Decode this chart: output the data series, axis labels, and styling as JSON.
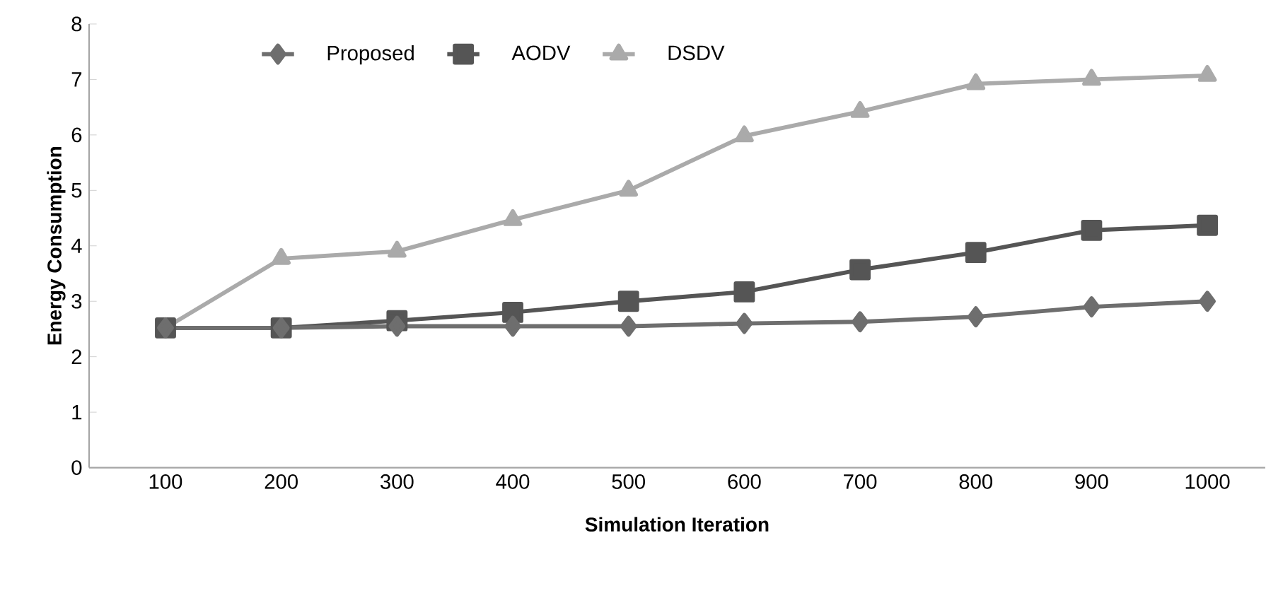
{
  "chart_data": {
    "type": "line",
    "xlabel": "Simulation Iteration",
    "ylabel": "Energy Consumption",
    "categories": [
      "100",
      "200",
      "300",
      "400",
      "500",
      "600",
      "700",
      "800",
      "900",
      "1000"
    ],
    "series": [
      {
        "name": "Proposed",
        "color": "#6e6e6e",
        "marker": "diamond",
        "values": [
          2.52,
          2.52,
          2.55,
          2.55,
          2.55,
          2.6,
          2.63,
          2.72,
          2.9,
          3.0
        ]
      },
      {
        "name": "AODV",
        "color": "#555555",
        "marker": "square",
        "values": [
          2.52,
          2.52,
          2.65,
          2.8,
          3.0,
          3.17,
          3.57,
          3.88,
          4.28,
          4.37
        ]
      },
      {
        "name": "DSDV",
        "color": "#aaaaaa",
        "marker": "triangle",
        "values": [
          2.52,
          3.77,
          3.9,
          4.47,
          5.0,
          5.98,
          6.42,
          6.92,
          7.0,
          7.07
        ]
      }
    ],
    "ylim": [
      0,
      8
    ],
    "yticks": [
      0,
      1,
      2,
      3,
      4,
      5,
      6,
      7,
      8
    ],
    "grid": false,
    "legend": "top left",
    "line_style": "solid"
  }
}
